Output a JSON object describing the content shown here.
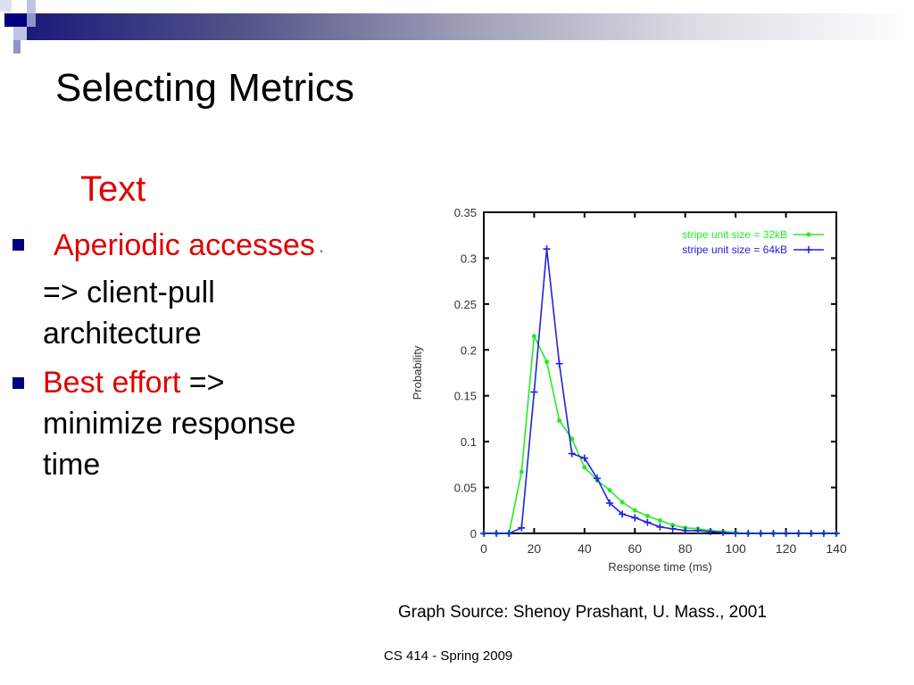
{
  "slide": {
    "title": "Selecting Metrics",
    "subtitle": "Text",
    "bullets": [
      {
        "highlight": "Aperiodic accesses",
        "rest_line1": " ·",
        "rest": "=> client-pull architecture"
      },
      {
        "highlight": "Best  effort",
        "rest_line1": " =>",
        "rest": "minimize response time"
      }
    ],
    "graph_source": "Graph Source: Shenoy Prashant, U. Mass., 2001",
    "footer": "CS 414 - Spring 2009"
  },
  "chart_data": {
    "type": "line",
    "title": "",
    "xlabel": "Response time (ms)",
    "ylabel": "Probability",
    "xlim": [
      0,
      140
    ],
    "ylim": [
      0,
      0.35
    ],
    "xticks": [
      "0",
      "20",
      "40",
      "60",
      "80",
      "100",
      "120",
      "140"
    ],
    "yticks": [
      "0",
      "0.05",
      "0.1",
      "0.15",
      "0.2",
      "0.25",
      "0.3",
      "0.35"
    ],
    "legend_position": "top-right",
    "x": [
      0,
      5,
      10,
      15,
      20,
      25,
      30,
      35,
      40,
      45,
      50,
      55,
      60,
      65,
      70,
      75,
      80,
      85,
      90,
      95,
      100,
      105,
      110,
      115,
      120,
      125,
      130,
      135,
      140
    ],
    "series": [
      {
        "name": "stripe unit size = 32kB",
        "color": "#22ee22",
        "values": [
          0,
          0,
          0,
          0.067,
          0.215,
          0.187,
          0.123,
          0.103,
          0.072,
          0.058,
          0.047,
          0.034,
          0.025,
          0.019,
          0.014,
          0.009,
          0.006,
          0.005,
          0.003,
          0.002,
          0.001,
          0,
          0,
          0,
          0,
          0,
          0,
          0,
          0
        ]
      },
      {
        "name": "stripe unit size = 64kB",
        "color": "#2222dd",
        "values": [
          0,
          0,
          0,
          0.006,
          0.154,
          0.31,
          0.185,
          0.087,
          0.082,
          0.06,
          0.033,
          0.021,
          0.017,
          0.012,
          0.007,
          0.005,
          0.003,
          0.003,
          0.002,
          0.001,
          0,
          0,
          0,
          0,
          0,
          0,
          0,
          0,
          0
        ]
      }
    ]
  }
}
